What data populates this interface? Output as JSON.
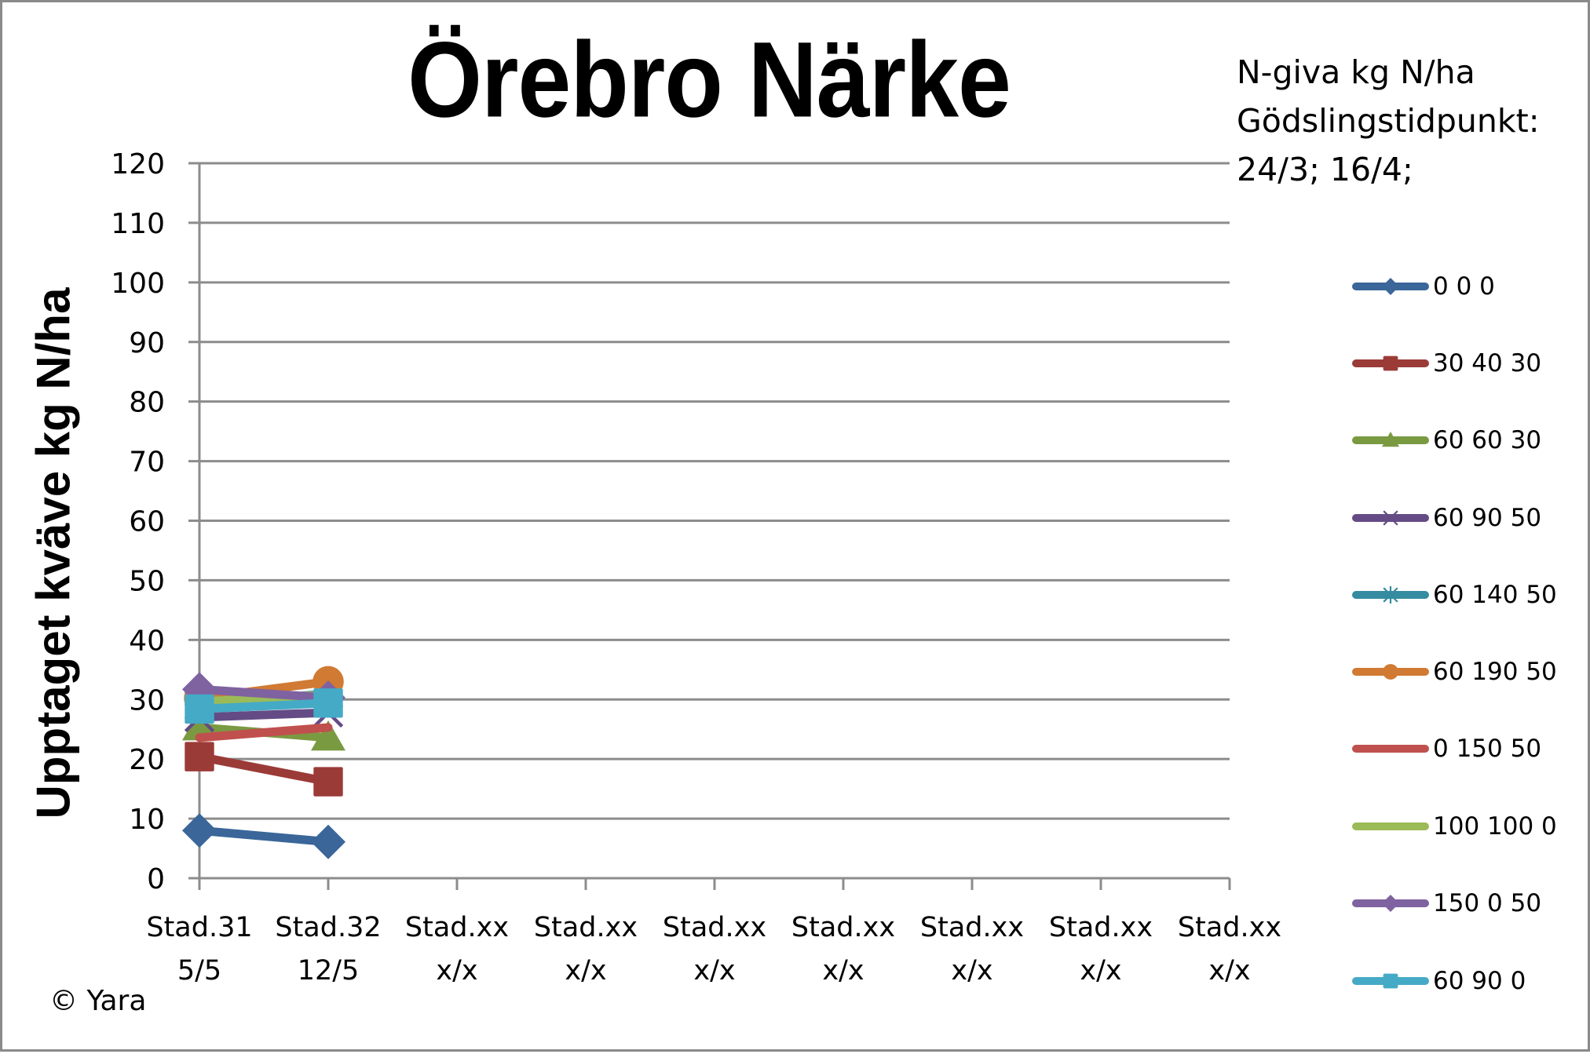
{
  "chart_data": {
    "type": "line",
    "title": "Örebro Närke",
    "xlabel": "",
    "ylabel": "Upptaget kväve kg N/ha",
    "ylim": [
      0,
      120
    ],
    "ytick_step": 10,
    "yticks": [
      "0",
      "10",
      "20",
      "30",
      "40",
      "50",
      "60",
      "70",
      "80",
      "90",
      "100",
      "110",
      "120"
    ],
    "grid": true,
    "legend_position": "right",
    "categories": [
      {
        "line1": "Stad.31",
        "line2": "5/5"
      },
      {
        "line1": "Stad.32",
        "line2": "12/5"
      },
      {
        "line1": "Stad.xx",
        "line2": "x/x"
      },
      {
        "line1": "Stad.xx",
        "line2": "x/x"
      },
      {
        "line1": "Stad.xx",
        "line2": "x/x"
      },
      {
        "line1": "Stad.xx",
        "line2": "x/x"
      },
      {
        "line1": "Stad.xx",
        "line2": "x/x"
      },
      {
        "line1": "Stad.xx",
        "line2": "x/x"
      },
      {
        "line1": "Stad.xx",
        "line2": "x/x"
      }
    ],
    "series": [
      {
        "name": "0 0 0",
        "color": "#3A6699",
        "marker": "diamond",
        "values": [
          8.0,
          6.1
        ]
      },
      {
        "name": "30 40 30",
        "color": "#9B3B38",
        "marker": "square",
        "values": [
          20.4,
          16.2
        ]
      },
      {
        "name": "60 60 30",
        "color": "#7A9A42",
        "marker": "triangle",
        "values": [
          25.3,
          23.6
        ]
      },
      {
        "name": "60 90 50",
        "color": "#644B85",
        "marker": "x",
        "values": [
          27.0,
          27.8
        ]
      },
      {
        "name": "60 140 50",
        "color": "#358BA0",
        "marker": "star",
        "values": [
          29.0,
          31.0
        ]
      },
      {
        "name": "60 190 50",
        "color": "#D07A33",
        "marker": "circle",
        "values": [
          30.2,
          33.0
        ]
      },
      {
        "name": "0 150 50",
        "color": "#C0504D",
        "marker": "none",
        "values": [
          23.6,
          25.3
        ]
      },
      {
        "name": "100 100 0",
        "color": "#9BBB59",
        "marker": "none",
        "values": [
          29.6,
          30.8
        ]
      },
      {
        "name": "150 0 50",
        "color": "#7F62A0",
        "marker": "diamond",
        "values": [
          31.7,
          30.3
        ]
      },
      {
        "name": "60 90 0",
        "color": "#45AAC6",
        "marker": "square",
        "values": [
          28.4,
          29.4
        ]
      }
    ]
  },
  "info": {
    "line1": "N-giva kg N/ha",
    "line2": "Gödslingstidpunkt:",
    "line3": "24/3; 16/4;"
  },
  "footer": {
    "copyright": "© Yara"
  },
  "colors": {
    "grid": "#8C8C8C",
    "axis": "#8C8C8C",
    "frame": "#8A8A8A"
  }
}
